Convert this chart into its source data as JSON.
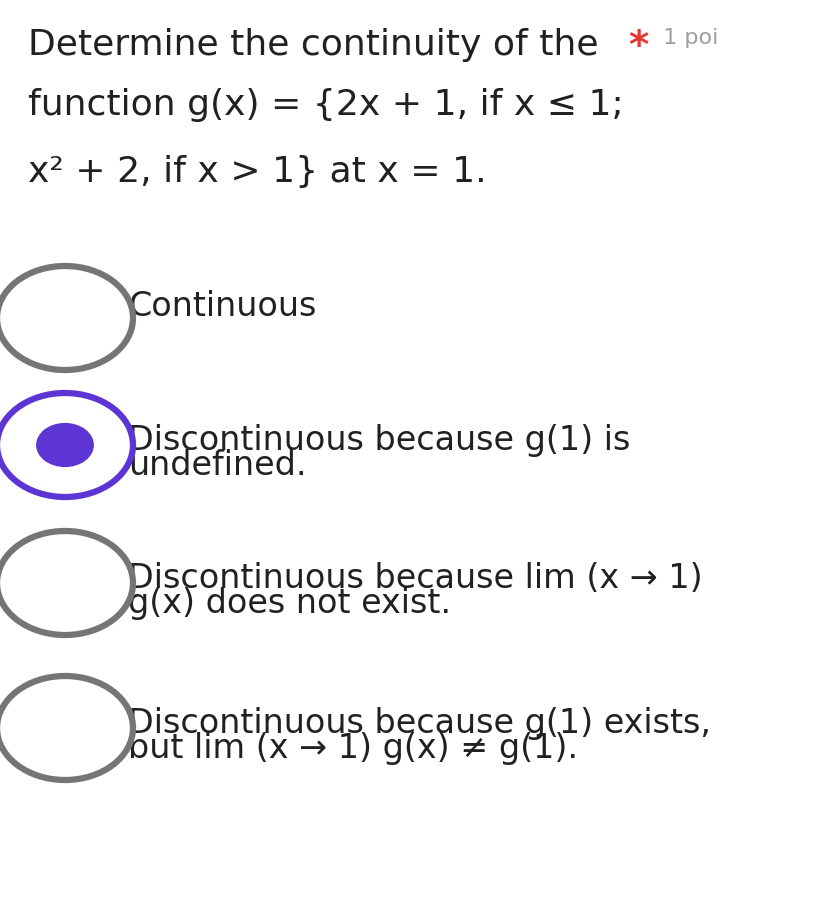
{
  "bg_color": "#ffffff",
  "title_line1": "Determine the continuity of the ",
  "title_star": "*",
  "title_point": " 1 poi",
  "title_line2": "function g(x) = {2x + 1, if x ≤ 1;",
  "title_line3": "x² + 2, if x > 1} at x = 1.",
  "options": [
    {
      "label": "Continuous",
      "label2": "",
      "selected": false
    },
    {
      "label": "Discontinuous because g(1) is",
      "label2": "undefined.",
      "selected": true
    },
    {
      "label": "Discontinuous because lim (x → 1)",
      "label2": "g(x) does not exist.",
      "selected": false
    },
    {
      "label": "Discontinuous because g(1) exists,",
      "label2": "but lim (x → 1) g(x) ≠ g(1).",
      "selected": false
    }
  ],
  "circle_color_unselected": "#757575",
  "circle_color_selected_outer": "#5c35d4",
  "circle_color_selected_inner": "#5c35d4",
  "text_color": "#212121",
  "star_color": "#e53935",
  "point_color": "#9e9e9e",
  "font_size_title": 26,
  "font_size_options": 24,
  "font_size_point": 16
}
